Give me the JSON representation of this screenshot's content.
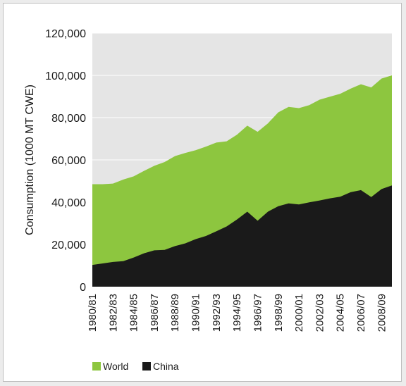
{
  "chart_data": {
    "type": "area",
    "ylabel": "Consumption (1000 MT CWE)",
    "xlabel": "",
    "ylim": [
      0,
      120000
    ],
    "yticks": [
      0,
      20000,
      40000,
      60000,
      80000,
      100000,
      120000
    ],
    "ytick_labels": [
      "0",
      "20,000",
      "40,000",
      "60,000",
      "80,000",
      "100,000",
      "120,000"
    ],
    "categories": [
      "1980/81",
      "1981/82",
      "1982/83",
      "1983/84",
      "1984/85",
      "1985/86",
      "1986/87",
      "1987/88",
      "1988/89",
      "1989/90",
      "1990/91",
      "1991/92",
      "1992/93",
      "1993/94",
      "1994/95",
      "1995/96",
      "1996/97",
      "1997/98",
      "1998/99",
      "1999/00",
      "2000/01",
      "2001/02",
      "2002/03",
      "2003/04",
      "2004/05",
      "2005/06",
      "2006/07",
      "2007/08",
      "2008/09",
      "2009/10"
    ],
    "xtick_labels": [
      "1980/81",
      "",
      "1982/83",
      "",
      "1984/85",
      "",
      "1986/87",
      "",
      "1988/89",
      "",
      "1990/91",
      "",
      "1992/93",
      "",
      "1994/95",
      "",
      "1996/97",
      "",
      "1998/99",
      "",
      "2000/01",
      "",
      "2002/03",
      "",
      "2004/05",
      "",
      "2006/07",
      "",
      "2008/09",
      ""
    ],
    "series": [
      {
        "name": "World",
        "color": "#8dc63f",
        "values": [
          48500,
          48500,
          48800,
          50700,
          52200,
          54800,
          57200,
          59000,
          61800,
          63300,
          64600,
          66300,
          68200,
          68800,
          71900,
          76200,
          73300,
          77300,
          82500,
          85100,
          84500,
          85900,
          88500,
          89900,
          91300,
          93700,
          95800,
          94300,
          98500,
          100000
        ]
      },
      {
        "name": "China",
        "color": "#1a1a1a",
        "values": [
          10300,
          11000,
          11700,
          12100,
          13800,
          15800,
          17200,
          17400,
          19200,
          20500,
          22500,
          24000,
          26200,
          28500,
          31800,
          35500,
          31200,
          35500,
          38100,
          39400,
          38900,
          39900,
          40800,
          41800,
          42600,
          44700,
          45700,
          42400,
          46200,
          47900
        ]
      }
    ]
  }
}
